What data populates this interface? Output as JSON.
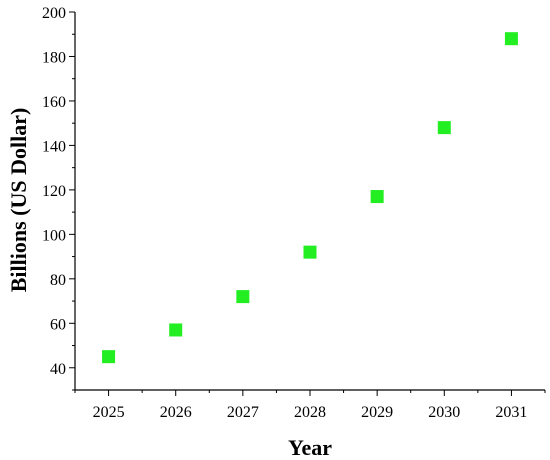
{
  "chart_data": {
    "type": "scatter",
    "xlabel": "Year",
    "ylabel": "Billions (US Dollar)",
    "x": [
      2025,
      2026,
      2027,
      2028,
      2029,
      2030,
      2031
    ],
    "y": [
      45,
      57,
      72,
      92,
      117,
      148,
      188
    ],
    "xlim": [
      2024.5,
      2031.5
    ],
    "ylim": [
      30,
      200
    ],
    "xticks": [
      "2025",
      "2026",
      "2027",
      "2028",
      "2029",
      "2030",
      "2031"
    ],
    "yticks": [
      "40",
      "60",
      "80",
      "100",
      "120",
      "140",
      "160",
      "180",
      "200"
    ],
    "marker": "square",
    "marker_color": "#22ee22",
    "grid": false,
    "legend": "none"
  }
}
